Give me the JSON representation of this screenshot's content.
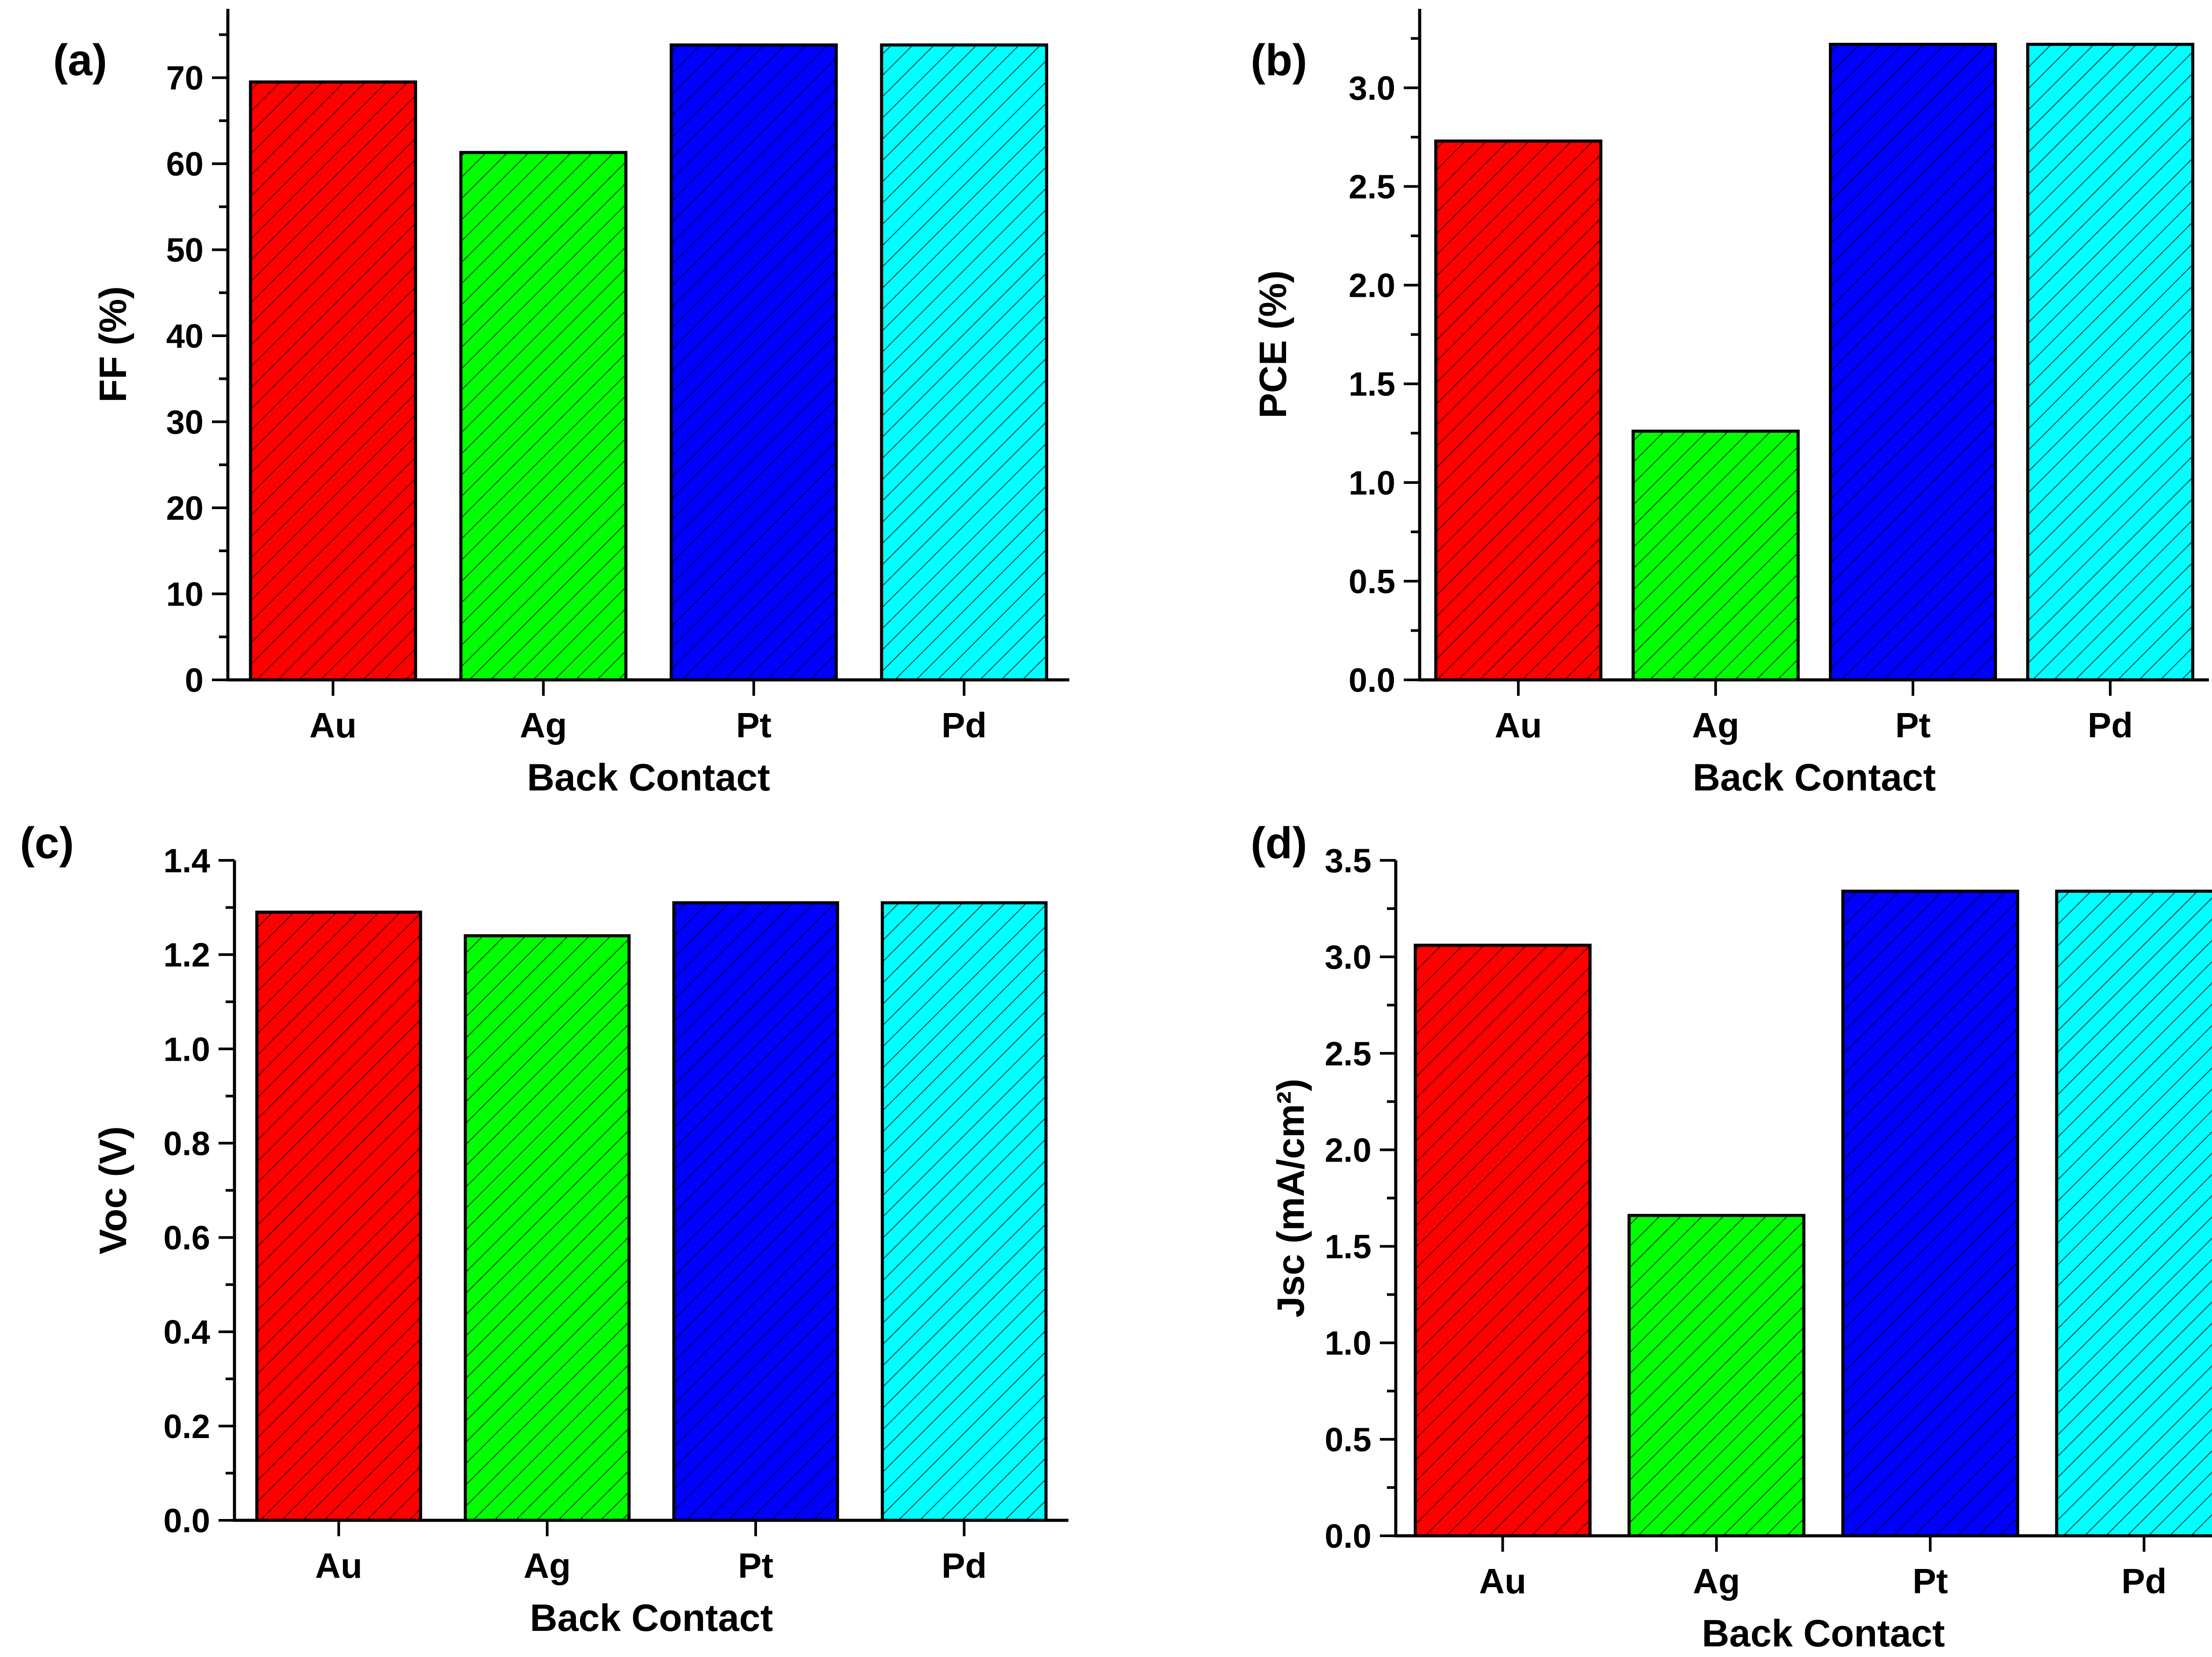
{
  "colors": {
    "Au": "#ff0000",
    "Ag": "#00ff00",
    "Pt": "#0000ff",
    "Pd": "#00ffff"
  },
  "chart_data": [
    {
      "panel": "(a)",
      "type": "bar",
      "categories": [
        "Au",
        "Ag",
        "Pt",
        "Pd"
      ],
      "values": [
        69.5,
        61.3,
        73.8,
        73.8
      ],
      "xlabel": "Back Contact",
      "ylabel": "FF (%)",
      "ylim": [
        0,
        78
      ],
      "yticks": [
        0,
        10,
        20,
        30,
        40,
        50,
        60,
        70
      ],
      "ytick_labels": [
        "0",
        "10",
        "20",
        "30",
        "40",
        "50",
        "60",
        "70"
      ]
    },
    {
      "panel": "(b)",
      "type": "bar",
      "categories": [
        "Au",
        "Ag",
        "Pt",
        "Pd"
      ],
      "values": [
        2.73,
        1.26,
        3.22,
        3.22
      ],
      "xlabel": "Back Contact",
      "ylabel": "PCE (%)",
      "ylim": [
        0,
        3.4
      ],
      "yticks": [
        0,
        0.5,
        1.0,
        1.5,
        2.0,
        2.5,
        3.0
      ],
      "ytick_labels": [
        "0.0",
        "0.5",
        "1.0",
        "1.5",
        "2.0",
        "2.5",
        "3.0"
      ]
    },
    {
      "panel": "(c)",
      "type": "bar",
      "categories": [
        "Au",
        "Ag",
        "Pt",
        "Pd"
      ],
      "values": [
        1.29,
        1.24,
        1.31,
        1.31
      ],
      "xlabel": "Back Contact",
      "ylabel": "Voc (V)",
      "ylim": [
        0,
        1.4
      ],
      "yticks": [
        0,
        0.2,
        0.4,
        0.6,
        0.8,
        1.0,
        1.2,
        1.4
      ],
      "ytick_labels": [
        "0.0",
        "0.2",
        "0.4",
        "0.6",
        "0.8",
        "1.0",
        "1.2",
        "1.4"
      ]
    },
    {
      "panel": "(d)",
      "type": "bar",
      "categories": [
        "Au",
        "Ag",
        "Pt",
        "Pd"
      ],
      "values": [
        3.06,
        1.66,
        3.34,
        3.34
      ],
      "xlabel": "Back Contact",
      "ylabel": "Jsc (mA/cm²)",
      "ylim": [
        0,
        3.5
      ],
      "yticks": [
        0,
        0.5,
        1.0,
        1.5,
        2.0,
        2.5,
        3.0,
        3.5
      ],
      "ytick_labels": [
        "0.0",
        "0.5",
        "1.0",
        "1.5",
        "2.0",
        "2.5",
        "3.0",
        "3.5"
      ]
    }
  ]
}
